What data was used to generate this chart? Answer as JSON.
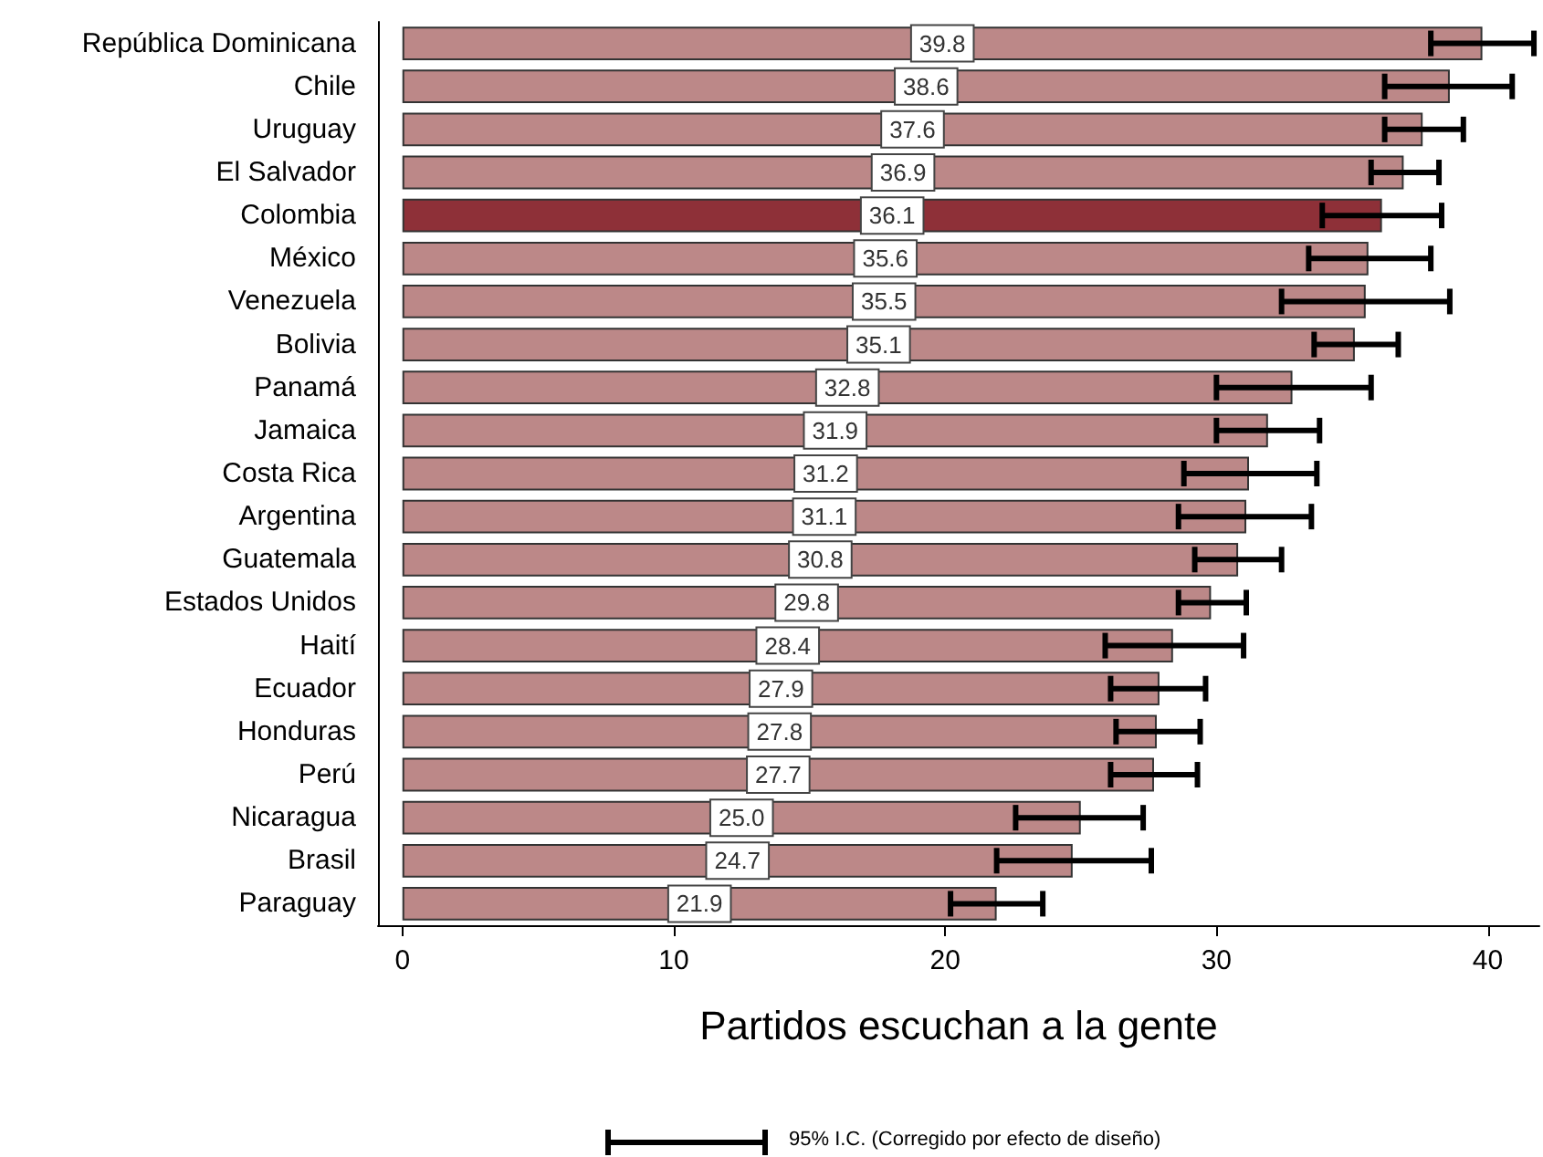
{
  "chart_data": {
    "type": "bar",
    "orientation": "horizontal",
    "xlabel": "Partidos escuchan a la gente",
    "categories": [
      "República Dominicana",
      "Chile",
      "Uruguay",
      "El Salvador",
      "Colombia",
      "México",
      "Venezuela",
      "Bolivia",
      "Panamá",
      "Jamaica",
      "Costa Rica",
      "Argentina",
      "Guatemala",
      "Estados Unidos",
      "Haití",
      "Ecuador",
      "Honduras",
      "Perú",
      "Nicaragua",
      "Brasil",
      "Paraguay"
    ],
    "values": [
      39.8,
      38.6,
      37.6,
      36.9,
      36.1,
      35.6,
      35.5,
      35.1,
      32.8,
      31.9,
      31.2,
      31.1,
      30.8,
      29.8,
      28.4,
      27.9,
      27.8,
      27.7,
      25.0,
      24.7,
      21.9
    ],
    "value_labels": [
      "39.8",
      "38.6",
      "37.6",
      "36.9",
      "36.1",
      "35.6",
      "35.5",
      "35.1",
      "32.8",
      "31.9",
      "31.2",
      "31.1",
      "30.8",
      "29.8",
      "28.4",
      "27.9",
      "27.8",
      "27.7",
      "25.0",
      "24.7",
      "21.9"
    ],
    "colors": [
      "#bc8888",
      "#bc8888",
      "#bc8888",
      "#bc8888",
      "#8e3038",
      "#bc8888",
      "#bc8888",
      "#bc8888",
      "#bc8888",
      "#bc8888",
      "#bc8888",
      "#bc8888",
      "#bc8888",
      "#bc8888",
      "#bc8888",
      "#bc8888",
      "#bc8888",
      "#bc8888",
      "#bc8888",
      "#bc8888",
      "#bc8888"
    ],
    "errors": [
      [
        37.9,
        41.7
      ],
      [
        36.2,
        40.9
      ],
      [
        36.2,
        39.1
      ],
      [
        35.7,
        38.2
      ],
      [
        33.9,
        38.3
      ],
      [
        33.4,
        37.9
      ],
      [
        32.4,
        38.6
      ],
      [
        33.6,
        36.7
      ],
      [
        30.0,
        35.7
      ],
      [
        30.0,
        33.8
      ],
      [
        28.8,
        33.7
      ],
      [
        28.6,
        33.5
      ],
      [
        29.2,
        32.4
      ],
      [
        28.6,
        31.1
      ],
      [
        25.9,
        31.0
      ],
      [
        26.1,
        29.6
      ],
      [
        26.3,
        29.4
      ],
      [
        26.1,
        29.3
      ],
      [
        22.6,
        27.3
      ],
      [
        21.9,
        27.6
      ],
      [
        20.2,
        23.6
      ]
    ],
    "xlim": [
      -0.9,
      41.9
    ],
    "xticks": [
      0,
      10,
      20,
      30,
      40
    ],
    "grid": false,
    "annotations": [
      "95% I.C. (Corregido por efecto de diseño)"
    ]
  }
}
